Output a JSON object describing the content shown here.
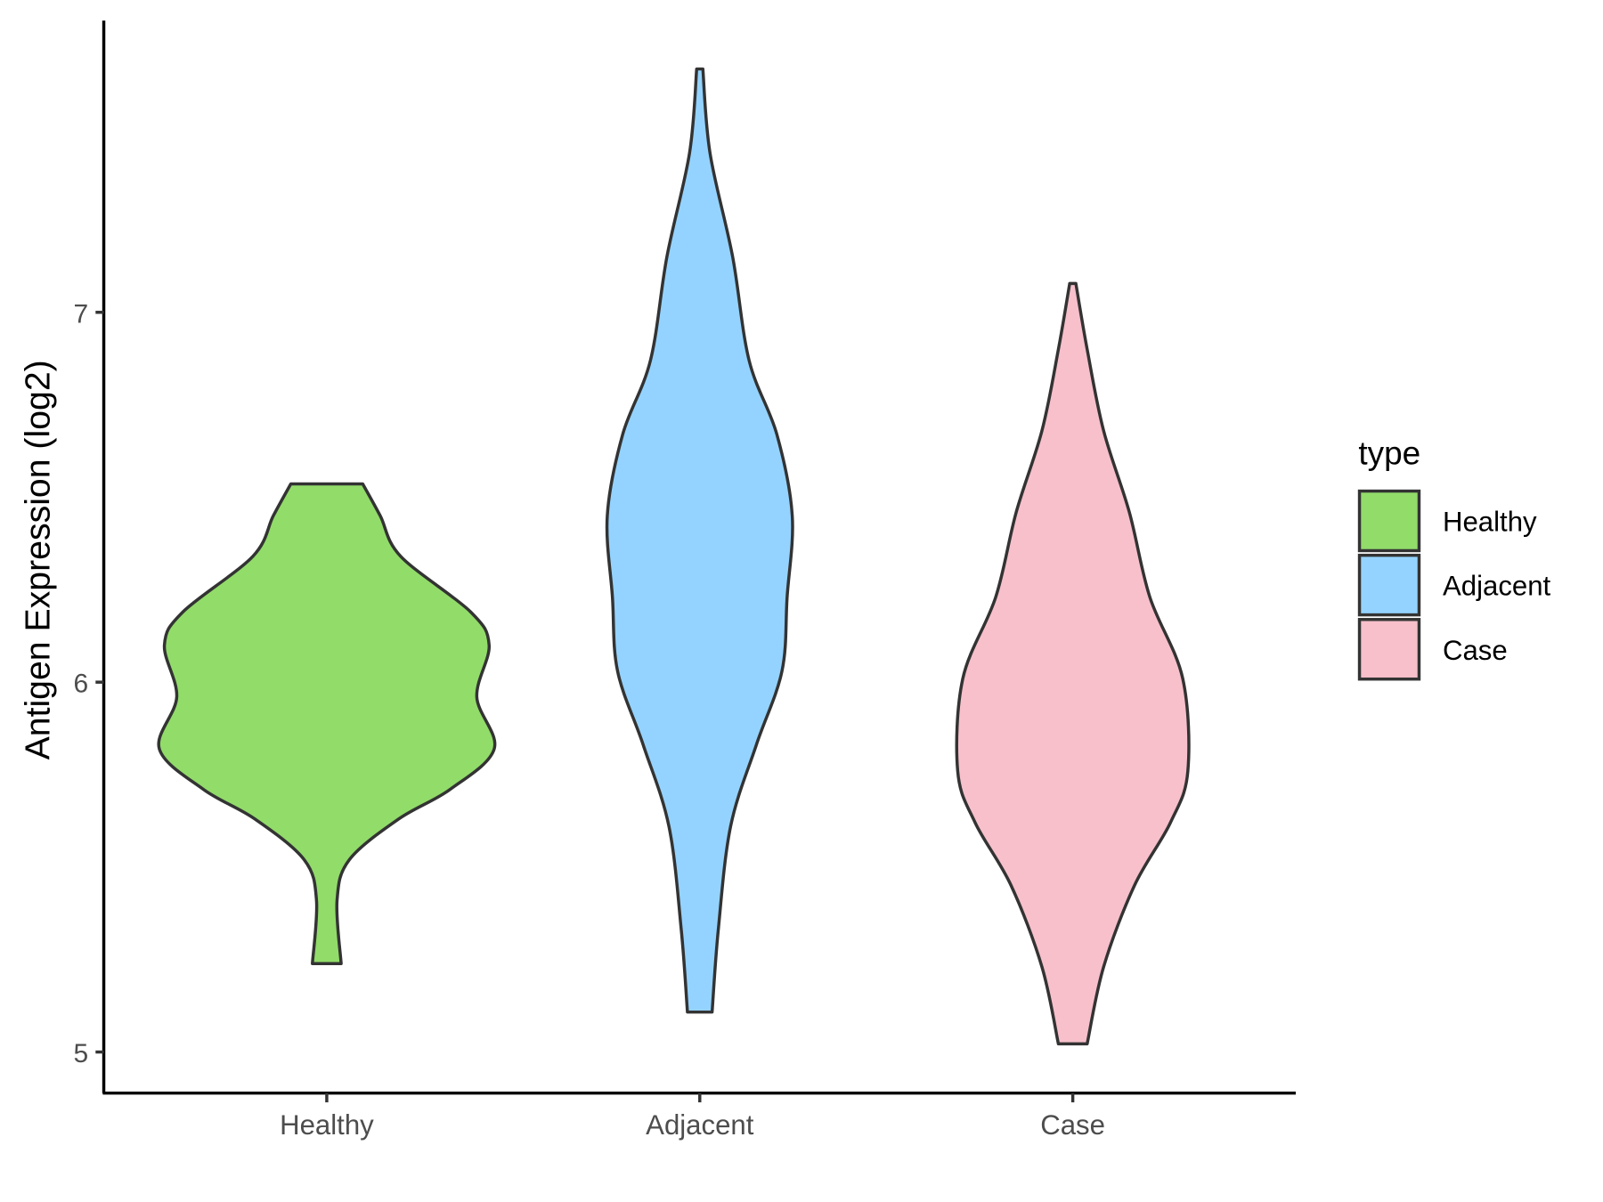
{
  "chart_data": {
    "type": "violin",
    "title": "",
    "xlabel": "",
    "ylabel": "Antigen Expression (log2)",
    "ylim": [
      4.9,
      7.75
    ],
    "yticks": [
      5,
      6,
      7
    ],
    "ytick_labels": [
      "5",
      "6",
      "7"
    ],
    "categories": [
      "Healthy",
      "Adjacent",
      "Case"
    ],
    "grid": false,
    "legend": {
      "title": "type",
      "placement": "right",
      "entries": [
        "Healthy",
        "Adjacent",
        "Case"
      ]
    },
    "series": [
      {
        "name": "Healthy",
        "color": "#92DC6A",
        "min": 5.239,
        "max": 6.536,
        "profile": [
          [
            6.536,
            35
          ],
          [
            6.45,
            52
          ],
          [
            6.34,
            72
          ],
          [
            6.19,
            140
          ],
          [
            6.1,
            158
          ],
          [
            5.96,
            146
          ],
          [
            5.82,
            163
          ],
          [
            5.71,
            120
          ],
          [
            5.63,
            70
          ],
          [
            5.52,
            22
          ],
          [
            5.41,
            10
          ],
          [
            5.239,
            14
          ]
        ]
      },
      {
        "name": "Adjacent",
        "color": "#94D3FF",
        "min": 5.108,
        "max": 7.658,
        "profile": [
          [
            7.658,
            3
          ],
          [
            7.43,
            10
          ],
          [
            7.15,
            32
          ],
          [
            6.87,
            48
          ],
          [
            6.67,
            75
          ],
          [
            6.45,
            90
          ],
          [
            6.23,
            85
          ],
          [
            6.03,
            80
          ],
          [
            5.83,
            55
          ],
          [
            5.61,
            30
          ],
          [
            5.33,
            18
          ],
          [
            5.108,
            12
          ]
        ]
      },
      {
        "name": "Case",
        "color": "#F7C0CB",
        "min": 5.022,
        "max": 7.078,
        "profile": [
          [
            7.078,
            3
          ],
          [
            6.9,
            14
          ],
          [
            6.68,
            30
          ],
          [
            6.46,
            55
          ],
          [
            6.23,
            75
          ],
          [
            6.01,
            107
          ],
          [
            5.76,
            112
          ],
          [
            5.62,
            95
          ],
          [
            5.45,
            60
          ],
          [
            5.23,
            30
          ],
          [
            5.022,
            14
          ]
        ]
      }
    ]
  }
}
